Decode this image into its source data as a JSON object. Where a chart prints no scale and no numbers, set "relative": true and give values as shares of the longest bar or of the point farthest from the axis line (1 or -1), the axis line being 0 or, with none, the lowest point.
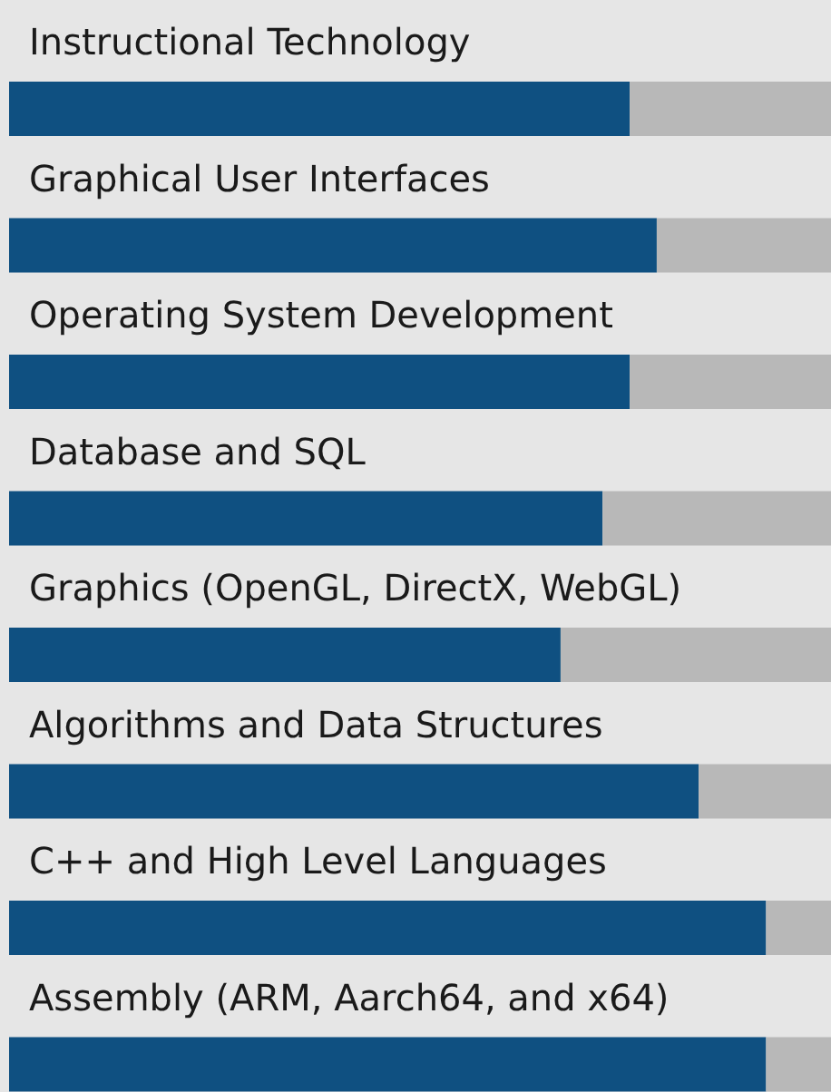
{
  "chart_data": {
    "type": "bar",
    "orientation": "horizontal",
    "stacked": true,
    "relative": true,
    "categories": [
      "Instructional Technology",
      "Graphical User Interfaces",
      "Operating System Development",
      "Database and SQL",
      "Graphics (OpenGL, DirectX, WebGL)",
      "Algorithms and Data Structures",
      "C++ and High Level Languages",
      "Assembly (ARM, Aarch64, and x64)"
    ],
    "series": [
      {
        "color": "#0f5081",
        "values": [
          0.755,
          0.788,
          0.755,
          0.722,
          0.671,
          0.839,
          0.921,
          0.921
        ]
      },
      {
        "color": "#b8b8b8",
        "values": [
          0.245,
          0.212,
          0.245,
          0.278,
          0.329,
          0.161,
          0.079,
          0.079
        ]
      }
    ]
  }
}
